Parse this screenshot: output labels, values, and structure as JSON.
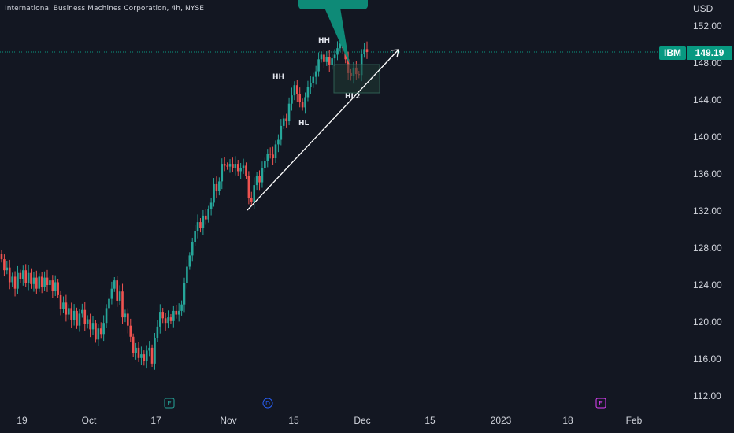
{
  "header": {
    "title": "International Business Machines Corporation, 4h, NYSE",
    "currency": "USD"
  },
  "price_badge": {
    "symbol": "IBM",
    "price": "149.19"
  },
  "annotations": {
    "hh_top": "HH",
    "hh_mid": "HH",
    "hl": "HL",
    "hl2": "HL2"
  },
  "event_markers": [
    "E",
    "D",
    "E"
  ],
  "colors": {
    "up": "#26a69a",
    "down": "#ef5350",
    "background": "#131722",
    "accent": "#089981",
    "dividend": "#2962ff",
    "earnings_future": "#e040fb"
  },
  "chart_data": {
    "type": "candlestick",
    "title": "International Business Machines Corporation, 4h, NYSE",
    "ylabel": "USD",
    "ylim": [
      110.5,
      153.7
    ],
    "y_ticks": [
      "152.00",
      "148.00",
      "144.00",
      "140.00",
      "136.00",
      "132.00",
      "128.00",
      "124.00",
      "120.00",
      "116.00",
      "112.00"
    ],
    "x_ticks": [
      "19",
      "Oct",
      "17",
      "Nov",
      "15",
      "Dec",
      "15",
      "2023",
      "18",
      "Feb"
    ],
    "last_price": 149.19,
    "grid": false,
    "closes": [
      126.8,
      125.6,
      125.9,
      124.3,
      124.9,
      123.6,
      125.3,
      124.6,
      125.6,
      124.2,
      125.3,
      124.1,
      124.8,
      123.6,
      124.9,
      123.8,
      124.8,
      124.0,
      124.5,
      123.4,
      124.3,
      122.9,
      121.4,
      122.1,
      120.8,
      121.5,
      120.2,
      121.2,
      119.6,
      120.9,
      121.3,
      119.8,
      120.3,
      119.2,
      119.9,
      118.1,
      119.3,
      118.7,
      119.9,
      121.5,
      122.5,
      123.6,
      124.5,
      122.3,
      123.3,
      120.5,
      120.9,
      119.6,
      118.4,
      116.6,
      117.2,
      116.1,
      116.5,
      115.8,
      116.9,
      117.2,
      115.5,
      118.3,
      119.5,
      121.1,
      120.4,
      119.9,
      120.5,
      120.1,
      121.2,
      120.8,
      121.2,
      121.9,
      124.2,
      126.0,
      127.2,
      128.6,
      129.8,
      130.8,
      130.2,
      131.5,
      131.1,
      132.2,
      132.9,
      134.9,
      134.2,
      135.2,
      137.1,
      136.9,
      136.8,
      137.1,
      136.6,
      137.1,
      136.3,
      136.6,
      136.9,
      135.8,
      133.4,
      133.0,
      134.8,
      135.8,
      135.1,
      136.6,
      137.4,
      138.2,
      138.1,
      137.7,
      139.2,
      139.7,
      141.2,
      142.0,
      141.7,
      143.6,
      144.5,
      145.6,
      144.6,
      143.8,
      143.2,
      144.3,
      145.4,
      145.8,
      146.5,
      147.1,
      148.4,
      148.9,
      148.1,
      148.6,
      147.8,
      148.5,
      148.9,
      149.6,
      150.1,
      149.6,
      148.4,
      146.9,
      146.6,
      147.5,
      146.8,
      146.7,
      149.0,
      149.5,
      149.19
    ]
  }
}
